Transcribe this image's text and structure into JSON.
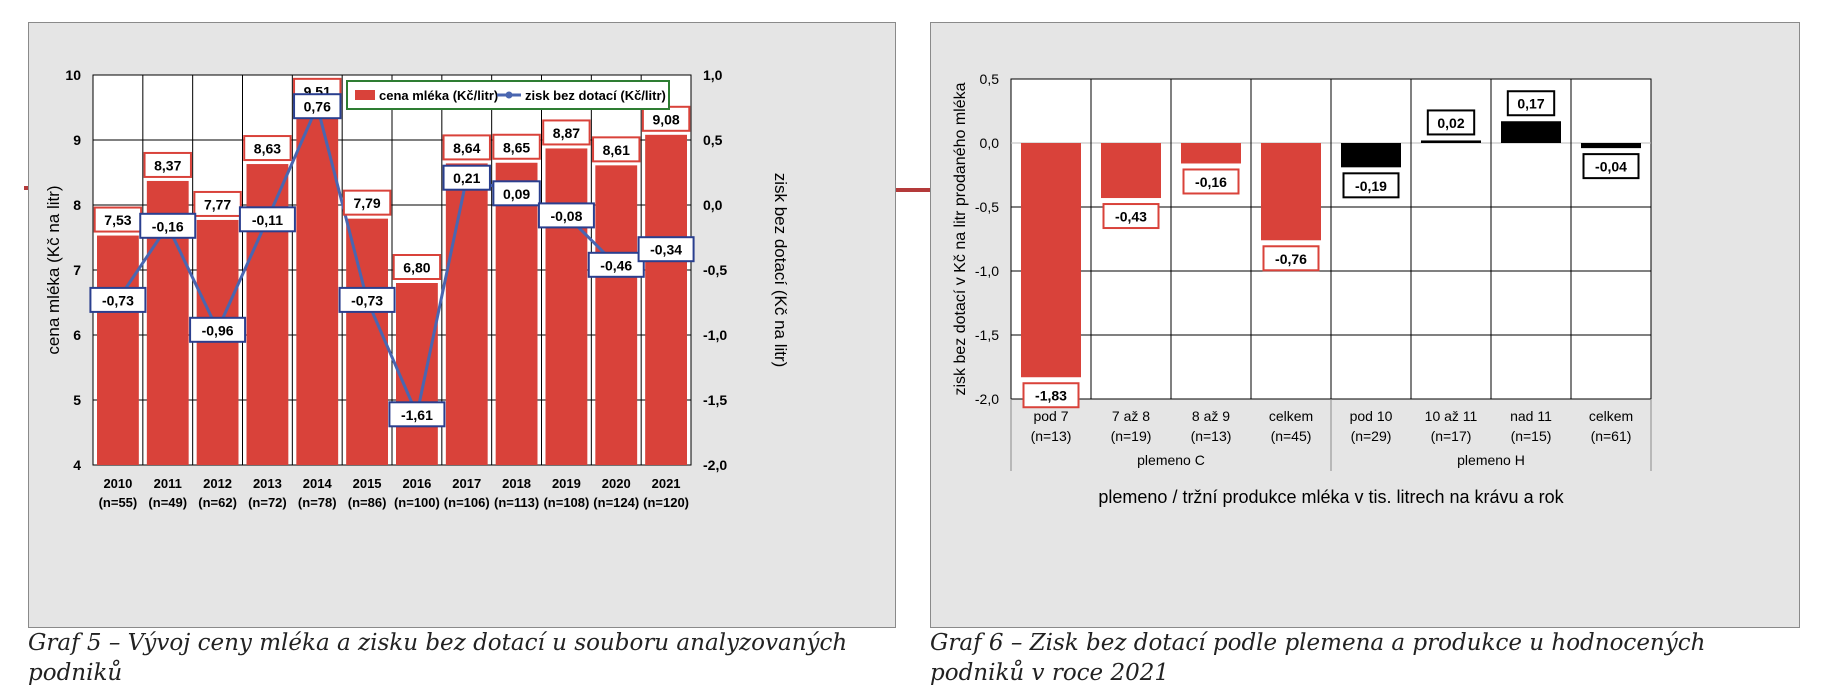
{
  "captions": {
    "graf5": "Graf 5 – Vývoj ceny mléka a zisku bez dotací u souboru analyzovaných podniků",
    "graf6": "Graf 6 – Zisk bez dotací podle plemena a produkce u hodnocených podniků v roce 2021"
  },
  "colors": {
    "bar": "#d9423a",
    "bar_dark": "#000000",
    "line": "#4a66b0",
    "label_box_bar": "#d9423a",
    "label_box_line": "#2a3f8f",
    "legend_border": "#2e7d32"
  },
  "chart_data": [
    {
      "type": "bar",
      "categories": [
        "2010",
        "2011",
        "2012",
        "2013",
        "2014",
        "2015",
        "2016",
        "2017",
        "2018",
        "2019",
        "2020",
        "2021"
      ],
      "category_counts": [
        "(n=55)",
        "(n=49)",
        "(n=62)",
        "(n=72)",
        "(n=78)",
        "(n=86)",
        "(n=100)",
        "(n=106)",
        "(n=113)",
        "(n=108)",
        "(n=124)",
        "(n=120)"
      ],
      "series": [
        {
          "name": "cena mléka (Kč/litr)",
          "type": "bar",
          "axis": "left",
          "values": [
            7.53,
            8.37,
            7.77,
            8.63,
            9.51,
            7.79,
            6.8,
            8.64,
            8.65,
            8.87,
            8.61,
            9.08
          ],
          "labels": [
            "7,53",
            "8,37",
            "7,77",
            "8,63",
            "9,51",
            "7,79",
            "6,80",
            "8,64",
            "8,65",
            "8,87",
            "8,61",
            "9,08"
          ]
        },
        {
          "name": "zisk bez dotací (Kč/litr)",
          "type": "line",
          "axis": "right",
          "values": [
            -0.73,
            -0.16,
            -0.96,
            -0.11,
            0.76,
            -0.73,
            -1.61,
            0.21,
            0.09,
            -0.08,
            -0.46,
            -0.34
          ],
          "labels": [
            "-0,73",
            "-0,16",
            "-0,96",
            "-0,11",
            "0,76",
            "-0,73",
            "-1,61",
            "0,21",
            "0,09",
            "-0,08",
            "-0,46",
            "-0,34"
          ]
        }
      ],
      "ylabel": "cena mléka (Kč na litr)",
      "y2label": "zisk bez dotací (Kč na litr)",
      "ylim": [
        4,
        10
      ],
      "y2lim": [
        -2.0,
        1.0
      ],
      "yticks": [
        "4",
        "5",
        "6",
        "7",
        "8",
        "9",
        "10"
      ],
      "y2ticks": [
        "-2,0",
        "-1,5",
        "-1,0",
        "-0,5",
        "0,0",
        "0,5",
        "1,0"
      ],
      "grid": true,
      "legend": "top-right"
    },
    {
      "type": "bar",
      "categories": [
        "pod 7",
        "7 až 8",
        "8 až 9",
        "celkem",
        "pod 10",
        "10 až 11",
        "nad 11",
        "celkem"
      ],
      "category_counts": [
        "(n=13)",
        "(n=19)",
        "(n=13)",
        "(n=45)",
        "(n=29)",
        "(n=17)",
        "(n=15)",
        "(n=61)"
      ],
      "groups": [
        {
          "name": "plemeno C",
          "count": 4
        },
        {
          "name": "plemeno H",
          "count": 4
        }
      ],
      "values": [
        -1.83,
        -0.43,
        -0.16,
        -0.76,
        -0.19,
        0.02,
        0.17,
        -0.04
      ],
      "labels": [
        "-1,83",
        "-0,43",
        "-0,16",
        "-0,76",
        "-0,19",
        "0,02",
        "0,17",
        "-0,04"
      ],
      "xlabel": "plemeno / tržní produkce mléka v tis. litrech na krávu a rok",
      "ylabel": "zisk bez dotací v Kč na litr prodaného mléka",
      "ylim": [
        -2.0,
        0.5
      ],
      "yticks": [
        "-2,0",
        "-1,5",
        "-1,0",
        "-0,5",
        "0,0",
        "0,5"
      ],
      "grid": true
    }
  ]
}
